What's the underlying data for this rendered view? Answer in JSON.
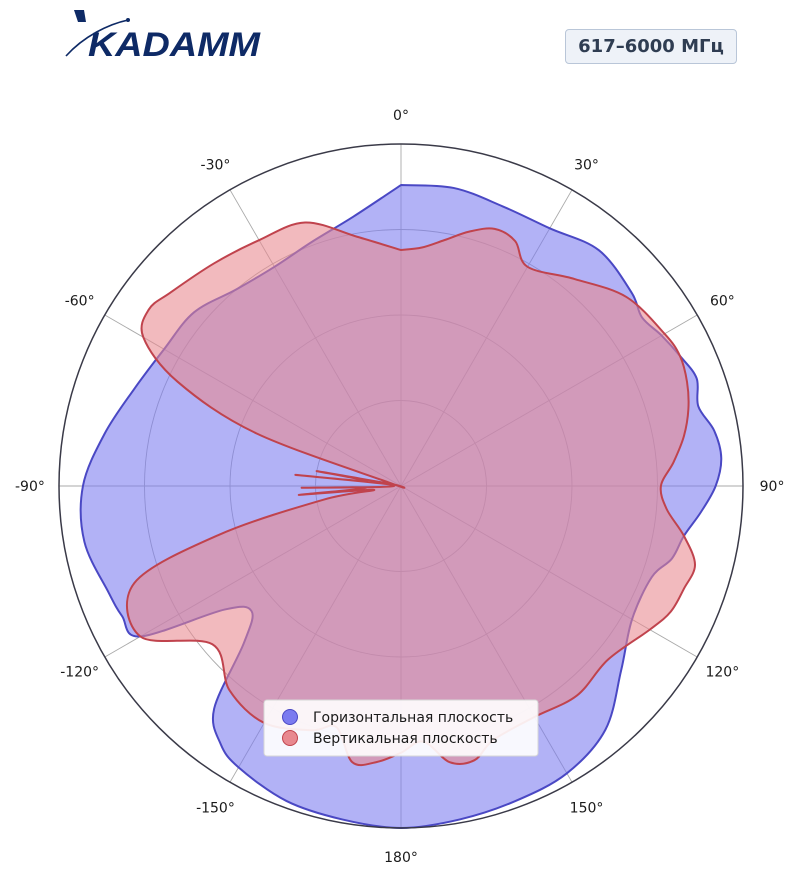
{
  "header": {
    "logo_text": "KADAMM",
    "freq_badge": "617–6000 МГц"
  },
  "colors": {
    "horizontal_fill": "#7b7bf0",
    "horizontal_edge": "#4a48c4",
    "vertical_fill": "#e8888f",
    "vertical_edge": "#c0434d",
    "logo": "#0e2a66",
    "grid": "#a9a9a9",
    "outer_circle": "#3a3a48"
  },
  "chart_data": {
    "type": "polar",
    "angle_direction": "clockwise",
    "zero_location": "top",
    "angular_ticks": [
      0,
      30,
      60,
      90,
      120,
      150,
      180,
      -150,
      -120,
      -90,
      -60,
      -30
    ],
    "angular_tick_labels": [
      "0°",
      "30°",
      "60°",
      "90°",
      "120°",
      "150°",
      "180°",
      "-150°",
      "-120°",
      "-90°",
      "-60°",
      "-30°"
    ],
    "radial_max": 1.0,
    "radial_grid": [
      0.25,
      0.5,
      0.75
    ],
    "radial_tick_labels_visible": false,
    "legend_position": "lower-center",
    "series": [
      {
        "name": "Горизонтальная плоскость",
        "color_key": "horizontal",
        "points": [
          [
            0,
            0.88
          ],
          [
            10,
            0.885
          ],
          [
            20,
            0.87
          ],
          [
            30,
            0.87
          ],
          [
            40,
            0.9
          ],
          [
            50,
            0.88
          ],
          [
            55,
            0.86
          ],
          [
            60,
            0.88
          ],
          [
            65,
            0.9
          ],
          [
            70,
            0.92
          ],
          [
            75,
            0.9
          ],
          [
            80,
            0.93
          ],
          [
            85,
            0.94
          ],
          [
            90,
            0.92
          ],
          [
            95,
            0.88
          ],
          [
            100,
            0.84
          ],
          [
            105,
            0.82
          ],
          [
            110,
            0.78
          ],
          [
            120,
            0.78
          ],
          [
            130,
            0.84
          ],
          [
            140,
            0.93
          ],
          [
            150,
            0.97
          ],
          [
            160,
            0.98
          ],
          [
            170,
            0.99
          ],
          [
            180,
            1.0
          ],
          [
            190,
            0.99
          ],
          [
            200,
            0.98
          ],
          [
            210,
            0.95
          ],
          [
            215,
            0.92
          ],
          [
            220,
            0.85
          ],
          [
            225,
            0.65
          ],
          [
            230,
            0.57
          ],
          [
            235,
            0.63
          ],
          [
            240,
            0.88
          ],
          [
            245,
            0.9
          ],
          [
            250,
            0.91
          ],
          [
            260,
            0.94
          ],
          [
            270,
            0.93
          ],
          [
            280,
            0.88
          ],
          [
            290,
            0.83
          ],
          [
            300,
            0.8
          ],
          [
            310,
            0.79
          ],
          [
            320,
            0.75
          ],
          [
            330,
            0.74
          ],
          [
            340,
            0.76
          ],
          [
            350,
            0.8
          ],
          [
            360,
            0.88
          ]
        ]
      },
      {
        "name": "Вертикальная плоскость",
        "color_key": "vertical",
        "points": [
          [
            0,
            0.69
          ],
          [
            5,
            0.7
          ],
          [
            10,
            0.73
          ],
          [
            15,
            0.77
          ],
          [
            20,
            0.8
          ],
          [
            25,
            0.79
          ],
          [
            30,
            0.74
          ],
          [
            40,
            0.79
          ],
          [
            50,
            0.86
          ],
          [
            60,
            0.89
          ],
          [
            65,
            0.9
          ],
          [
            70,
            0.89
          ],
          [
            75,
            0.87
          ],
          [
            80,
            0.84
          ],
          [
            85,
            0.8
          ],
          [
            90,
            0.76
          ],
          [
            95,
            0.78
          ],
          [
            100,
            0.84
          ],
          [
            105,
            0.89
          ],
          [
            110,
            0.88
          ],
          [
            115,
            0.87
          ],
          [
            120,
            0.84
          ],
          [
            130,
            0.79
          ],
          [
            140,
            0.8
          ],
          [
            150,
            0.78
          ],
          [
            160,
            0.79
          ],
          [
            165,
            0.83
          ],
          [
            170,
            0.82
          ],
          [
            175,
            0.75
          ],
          [
            180,
            0.78
          ],
          [
            185,
            0.81
          ],
          [
            190,
            0.82
          ],
          [
            195,
            0.73
          ],
          [
            200,
            0.76
          ],
          [
            210,
            0.8
          ],
          [
            220,
            0.78
          ],
          [
            230,
            0.72
          ],
          [
            240,
            0.88
          ],
          [
            250,
            0.83
          ],
          [
            255,
            0.55
          ],
          [
            260,
            0.23
          ],
          [
            262,
            0.08
          ],
          [
            265,
            0.3
          ],
          [
            267,
            0.1
          ],
          [
            269,
            0.29
          ],
          [
            272,
            0.02
          ],
          [
            276,
            0.31
          ],
          [
            278,
            0.1
          ],
          [
            280,
            0.25
          ],
          [
            282,
            0.03
          ],
          [
            285,
            0.03
          ],
          [
            290,
            0.45
          ],
          [
            295,
            0.72
          ],
          [
            300,
            0.87
          ],
          [
            305,
            0.9
          ],
          [
            310,
            0.88
          ],
          [
            320,
            0.85
          ],
          [
            330,
            0.83
          ],
          [
            340,
            0.82
          ],
          [
            350,
            0.74
          ],
          [
            360,
            0.69
          ]
        ]
      }
    ]
  }
}
